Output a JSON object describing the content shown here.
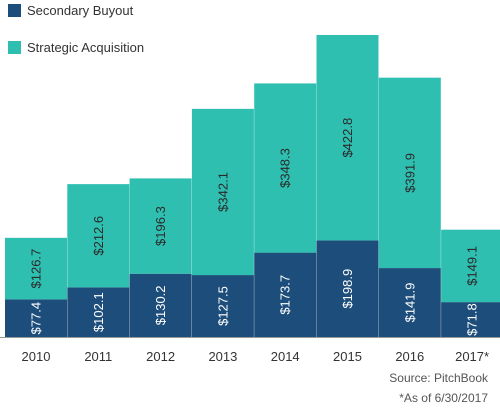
{
  "chart_data": {
    "type": "bar",
    "stacked": true,
    "categories": [
      "2010",
      "2011",
      "2012",
      "2013",
      "2014",
      "2015",
      "2016",
      "2017*"
    ],
    "series": [
      {
        "name": "Secondary Buyout",
        "color": "#1d4e7b",
        "values": [
          77.4,
          102.1,
          130.2,
          127.5,
          173.7,
          198.9,
          141.9,
          71.8
        ],
        "labels": [
          "$77.4",
          "$102.1",
          "$130.2",
          "$127.5",
          "$173.7",
          "$198.9",
          "$141.9",
          "$71.8"
        ]
      },
      {
        "name": "Strategic Acquisition",
        "color": "#2fbfb0",
        "values": [
          126.7,
          212.6,
          196.3,
          342.1,
          348.3,
          422.8,
          391.9,
          149.1
        ],
        "labels": [
          "$126.7",
          "$212.6",
          "$196.3",
          "$342.1",
          "$348.3",
          "$422.8",
          "$391.9",
          "$149.1"
        ]
      }
    ],
    "grid": false,
    "legend": "top-left",
    "ylim": [
      0,
      630
    ]
  },
  "source": {
    "line1": "Source: PitchBook",
    "line2": "*As of 6/30/2017"
  }
}
